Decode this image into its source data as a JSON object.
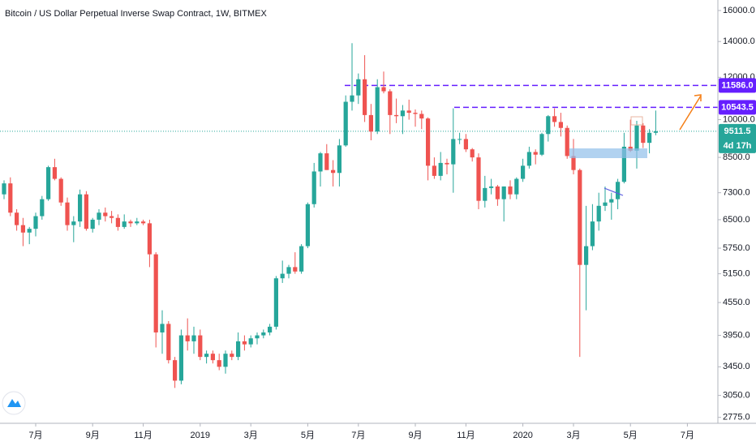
{
  "chart_data": {
    "type": "candlestick",
    "title": "Bitcoin / US Dollar Perpetual Inverse Swap Contract, 1W, BITMEX",
    "log_scale": true,
    "ylim": [
      2705,
      16740
    ],
    "yticks": [
      {
        "value": 16000,
        "label": "16000.0"
      },
      {
        "value": 14000,
        "label": "14000.0"
      },
      {
        "value": 12000,
        "label": "12000.0"
      },
      {
        "value": 10000,
        "label": "10000.0"
      },
      {
        "value": 8500,
        "label": "8500.0"
      },
      {
        "value": 7300,
        "label": "7300.0"
      },
      {
        "value": 6500,
        "label": "6500.0"
      },
      {
        "value": 5750,
        "label": "5750.0"
      },
      {
        "value": 5150,
        "label": "5150.0"
      },
      {
        "value": 4550,
        "label": "4550.0"
      },
      {
        "value": 3950,
        "label": "3950.0"
      },
      {
        "value": 3450,
        "label": "3450.0"
      },
      {
        "value": 3050,
        "label": "3050.0"
      },
      {
        "value": 2775,
        "label": "2775.0"
      }
    ],
    "up_color": "#26a69a",
    "down_color": "#ef5350",
    "categories": [
      null,
      null,
      null,
      null,
      null,
      "7月",
      null,
      null,
      null,
      null,
      null,
      null,
      null,
      null,
      "9月",
      null,
      null,
      null,
      null,
      null,
      null,
      null,
      "11月",
      null,
      null,
      null,
      null,
      null,
      null,
      null,
      null,
      "2019",
      null,
      null,
      null,
      null,
      null,
      null,
      null,
      "3月",
      null,
      null,
      null,
      null,
      null,
      null,
      null,
      null,
      "5月",
      null,
      null,
      null,
      null,
      null,
      null,
      null,
      "7月",
      null,
      null,
      null,
      null,
      null,
      null,
      null,
      null,
      "9月",
      null,
      null,
      null,
      null,
      null,
      null,
      null,
      "11月",
      null,
      null,
      null,
      null,
      null,
      null,
      null,
      null,
      "2020",
      null,
      null,
      null,
      null,
      null,
      null,
      null,
      "3月",
      null,
      null,
      null,
      null,
      null,
      null,
      null,
      null,
      "5月",
      null,
      null,
      null,
      null,
      null,
      null,
      null,
      null,
      "7月"
    ],
    "open": [
      7250,
      7600,
      6700,
      6350,
      6150,
      6250,
      6600,
      7100,
      8150,
      7750,
      7000,
      6350,
      6450,
      7250,
      6250,
      6500,
      6700,
      6600,
      6550,
      6300,
      6450,
      6400,
      6450,
      6400,
      5600,
      4000,
      4150,
      3550,
      3250,
      3950,
      3850,
      3950,
      3600,
      3650,
      3550,
      3450,
      3650,
      3600,
      3850,
      3800,
      3900,
      3950,
      4000,
      4100,
      5050,
      5150,
      5300,
      5200,
      5800,
      6950,
      8000,
      8650,
      8050,
      7950,
      8950,
      10800,
      11100,
      11900,
      10200,
      9500,
      11500,
      11300,
      10200,
      10150,
      10400,
      10300,
      10250,
      10050,
      8200,
      7850,
      8300,
      8250,
      9200,
      9200,
      8800,
      8500,
      7050,
      7450,
      7500,
      7100,
      7500,
      7250,
      7750,
      8200,
      8700,
      8600,
      9400,
      10150,
      9900,
      9650,
      8550,
      8050,
      5350,
      5800,
      6450,
      6900,
      7000,
      7100,
      7650,
      8900,
      8750,
      9750,
      9050,
      9450,
      null,
      null,
      null,
      null,
      null
    ],
    "high": [
      7700,
      7800,
      6800,
      6550,
      6300,
      6700,
      7200,
      8200,
      8450,
      7800,
      7150,
      6600,
      7400,
      7350,
      6550,
      6800,
      6850,
      6750,
      6650,
      6650,
      6500,
      6550,
      6500,
      6500,
      5650,
      4400,
      4200,
      3600,
      4050,
      4250,
      4100,
      4050,
      3700,
      3700,
      3650,
      3700,
      3700,
      4000,
      3950,
      3950,
      4000,
      4050,
      4150,
      5100,
      5450,
      5350,
      5650,
      5850,
      7000,
      8300,
      8700,
      9000,
      8400,
      9200,
      11100,
      13900,
      12200,
      13200,
      10700,
      11900,
      12300,
      11400,
      10950,
      10650,
      10900,
      10450,
      10400,
      10100,
      8500,
      8700,
      8450,
      10500,
      9450,
      9400,
      8850,
      8650,
      7850,
      7750,
      7550,
      7500,
      7700,
      7800,
      8450,
      8900,
      8800,
      9450,
      10200,
      10500,
      10300,
      9750,
      9200,
      8100,
      6900,
      6950,
      7300,
      7500,
      7300,
      7750,
      9450,
      10000,
      9950,
      9850,
      9600,
      10400,
      null,
      null,
      null,
      null,
      null
    ],
    "low": [
      7100,
      6600,
      6200,
      5800,
      5850,
      6050,
      6500,
      7050,
      7700,
      6900,
      6200,
      5900,
      6300,
      6200,
      6150,
      6350,
      6450,
      6400,
      6200,
      6250,
      6300,
      6350,
      6350,
      5300,
      3750,
      3650,
      3500,
      3150,
      3200,
      3700,
      3650,
      3550,
      3500,
      3500,
      3400,
      3350,
      3550,
      3550,
      3700,
      3750,
      3800,
      3900,
      3950,
      4050,
      4950,
      5050,
      5150,
      5150,
      5750,
      6850,
      7500,
      8050,
      7500,
      7500,
      8900,
      10400,
      10700,
      9900,
      9150,
      9400,
      11200,
      9400,
      9850,
      9400,
      10000,
      9700,
      9600,
      7700,
      7750,
      7700,
      7900,
      7300,
      9000,
      8700,
      8350,
      6800,
      6850,
      7250,
      6900,
      6450,
      7100,
      7100,
      7650,
      8100,
      8250,
      8550,
      9100,
      9700,
      9300,
      8450,
      7900,
      3600,
      4400,
      5700,
      6200,
      6750,
      6500,
      6800,
      7600,
      8700,
      8100,
      8850,
      8650,
      9350,
      null,
      null,
      null,
      null,
      null
    ],
    "close": [
      7600,
      6700,
      6350,
      6150,
      6250,
      6600,
      7100,
      8150,
      7750,
      7000,
      6350,
      6450,
      7250,
      6250,
      6500,
      6700,
      6600,
      6550,
      6300,
      6450,
      6400,
      6450,
      6400,
      5600,
      4000,
      4150,
      3550,
      3250,
      3950,
      3850,
      3950,
      3600,
      3650,
      3550,
      3450,
      3650,
      3600,
      3850,
      3800,
      3900,
      3950,
      4000,
      4100,
      5050,
      5150,
      5300,
      5200,
      5800,
      6950,
      8000,
      8650,
      8050,
      7950,
      8950,
      10800,
      11100,
      11900,
      10200,
      9500,
      11500,
      11300,
      10200,
      10150,
      10400,
      10300,
      10250,
      10050,
      8200,
      7850,
      8300,
      8250,
      9200,
      9200,
      8800,
      8500,
      7050,
      7450,
      7500,
      7100,
      7500,
      7250,
      7750,
      8200,
      8700,
      8600,
      9400,
      10150,
      9900,
      9650,
      8550,
      8050,
      5350,
      5800,
      6450,
      6900,
      7000,
      7100,
      7650,
      8900,
      8750,
      9750,
      9050,
      9450,
      9511.5,
      null,
      null,
      null,
      null,
      null
    ],
    "levels": [
      {
        "value": 11586,
        "label": "11586.0",
        "color": "#651fff"
      },
      {
        "value": 10543.5,
        "label": "10543.5",
        "color": "#651fff"
      }
    ],
    "last_price": {
      "value": 9511.5,
      "label": "9511.5",
      "color": "#26a69a"
    },
    "countdown": "4d 17h"
  }
}
